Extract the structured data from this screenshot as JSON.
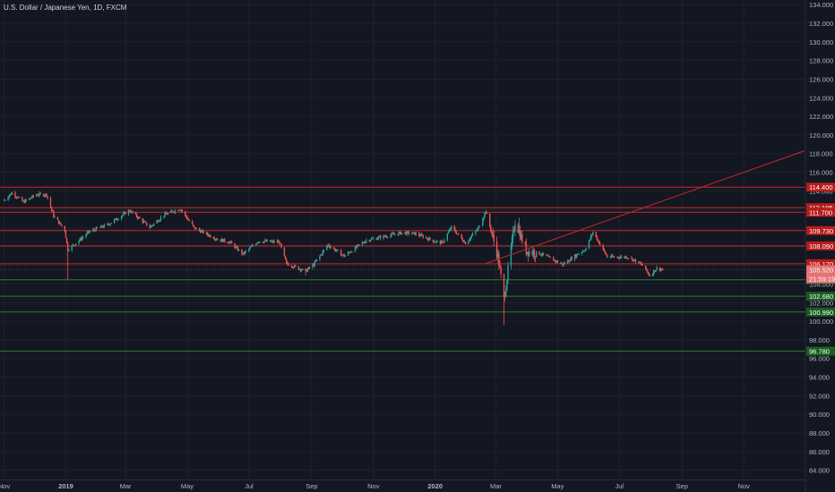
{
  "legend": {
    "symbol": "U.S. Dollar / Japanese Yen",
    "interval": "1D",
    "source": "FXCM",
    "separator": ", "
  },
  "colors": {
    "background": "#131722",
    "grid": "#1e222d",
    "axis_text": "#b2b5be",
    "candle_up": "#26a69a",
    "candle_down": "#ef5350",
    "level_red": "#c62828",
    "level_green": "#2e7d32",
    "tag_red": "#b71c1c",
    "tag_green": "#1b5e20",
    "tag_last": "#e57373"
  },
  "chart_data": {
    "type": "candlestick",
    "title": "U.S. Dollar / Japanese Yen, 1D, FXCM",
    "y_ticks": [
      "84.000",
      "86.000",
      "88.000",
      "90.000",
      "92.000",
      "94.000",
      "96.000",
      "98.000",
      "100.000",
      "102.000",
      "104.000",
      "106.000",
      "108.000",
      "110.000",
      "112.000",
      "114.000",
      "116.000",
      "118.000",
      "120.000",
      "122.000",
      "124.000",
      "126.000",
      "128.000",
      "130.000",
      "132.000",
      "134.000"
    ],
    "x_ticks": [
      {
        "label": "Nov",
        "date": "2018-11-01"
      },
      {
        "label": "2019",
        "date": "2019-01-01"
      },
      {
        "label": "Mar",
        "date": "2019-03-01"
      },
      {
        "label": "May",
        "date": "2019-05-01"
      },
      {
        "label": "Jul",
        "date": "2019-07-01"
      },
      {
        "label": "Sep",
        "date": "2019-09-01"
      },
      {
        "label": "Nov",
        "date": "2019-11-01"
      },
      {
        "label": "2020",
        "date": "2020-01-01"
      },
      {
        "label": "Mar",
        "date": "2020-03-01"
      },
      {
        "label": "May",
        "date": "2020-05-01"
      },
      {
        "label": "Jul",
        "date": "2020-07-01"
      },
      {
        "label": "Sep",
        "date": "2020-09-01"
      },
      {
        "label": "Nov",
        "date": "2020-11-01"
      }
    ],
    "y_range": [
      83.0,
      134.5
    ],
    "x_range": [
      "2018-10-28",
      "2020-12-31"
    ],
    "horizontal_levels": [
      {
        "value": 114.4,
        "label": "114.400",
        "color": "red"
      },
      {
        "value": 112.195,
        "label": "112.195",
        "color": "red"
      },
      {
        "value": 111.7,
        "label": "111.700",
        "color": "red"
      },
      {
        "value": 109.73,
        "label": "109.730",
        "color": "red"
      },
      {
        "value": 108.09,
        "label": "108.090",
        "color": "red"
      },
      {
        "value": 106.17,
        "label": "106.170",
        "color": "red"
      },
      {
        "value": 104.45,
        "label": "104.450",
        "color": "green"
      },
      {
        "value": 102.68,
        "label": "102.680",
        "color": "green"
      },
      {
        "value": 100.99,
        "label": "100.990",
        "color": "green"
      },
      {
        "value": 96.78,
        "label": "96.780",
        "color": "green"
      }
    ],
    "last_price": {
      "value": 105.52,
      "label": "105.520",
      "countdown": "21:59:19"
    },
    "trendline": {
      "start": {
        "date": "2020-02-20",
        "price": 106.2
      },
      "end": {
        "date": "2020-12-31",
        "price": 118.3
      }
    },
    "price_path": [
      {
        "date": "2018-11-01",
        "price": 113.0
      },
      {
        "date": "2018-11-09",
        "price": 113.8
      },
      {
        "date": "2018-11-20",
        "price": 112.8
      },
      {
        "date": "2018-12-03",
        "price": 113.6
      },
      {
        "date": "2018-12-13",
        "price": 113.6
      },
      {
        "date": "2018-12-20",
        "price": 111.3
      },
      {
        "date": "2018-12-31",
        "price": 109.8
      },
      {
        "date": "2019-01-03",
        "price": 107.7
      },
      {
        "date": "2019-01-10",
        "price": 108.3
      },
      {
        "date": "2019-01-24",
        "price": 109.6
      },
      {
        "date": "2019-02-12",
        "price": 110.4
      },
      {
        "date": "2019-03-05",
        "price": 111.9
      },
      {
        "date": "2019-03-25",
        "price": 110.1
      },
      {
        "date": "2019-04-08",
        "price": 111.4
      },
      {
        "date": "2019-04-24",
        "price": 112.1
      },
      {
        "date": "2019-05-08",
        "price": 110.0
      },
      {
        "date": "2019-05-31",
        "price": 108.8
      },
      {
        "date": "2019-06-12",
        "price": 108.5
      },
      {
        "date": "2019-06-25",
        "price": 107.2
      },
      {
        "date": "2019-07-10",
        "price": 108.6
      },
      {
        "date": "2019-07-31",
        "price": 108.5
      },
      {
        "date": "2019-08-07",
        "price": 106.2
      },
      {
        "date": "2019-08-26",
        "price": 105.4
      },
      {
        "date": "2019-09-03",
        "price": 106.1
      },
      {
        "date": "2019-09-17",
        "price": 108.2
      },
      {
        "date": "2019-10-03",
        "price": 107.0
      },
      {
        "date": "2019-10-25",
        "price": 108.7
      },
      {
        "date": "2019-11-29",
        "price": 109.5
      },
      {
        "date": "2019-12-13",
        "price": 109.4
      },
      {
        "date": "2019-12-31",
        "price": 108.6
      },
      {
        "date": "2020-01-08",
        "price": 108.4
      },
      {
        "date": "2020-01-17",
        "price": 110.1
      },
      {
        "date": "2020-01-31",
        "price": 108.4
      },
      {
        "date": "2020-02-12",
        "price": 109.9
      },
      {
        "date": "2020-02-20",
        "price": 111.8
      },
      {
        "date": "2020-03-03",
        "price": 107.0
      },
      {
        "date": "2020-03-09",
        "price": 102.4
      },
      {
        "date": "2020-03-20",
        "price": 110.8
      },
      {
        "date": "2020-03-31",
        "price": 107.6
      },
      {
        "date": "2020-04-15",
        "price": 107.2
      },
      {
        "date": "2020-05-06",
        "price": 106.1
      },
      {
        "date": "2020-05-29",
        "price": 107.8
      },
      {
        "date": "2020-06-05",
        "price": 109.6
      },
      {
        "date": "2020-06-19",
        "price": 106.9
      },
      {
        "date": "2020-07-10",
        "price": 106.9
      },
      {
        "date": "2020-07-24",
        "price": 106.0
      },
      {
        "date": "2020-07-31",
        "price": 104.9
      },
      {
        "date": "2020-08-07",
        "price": 105.7
      },
      {
        "date": "2020-08-13",
        "price": 105.52
      }
    ]
  }
}
